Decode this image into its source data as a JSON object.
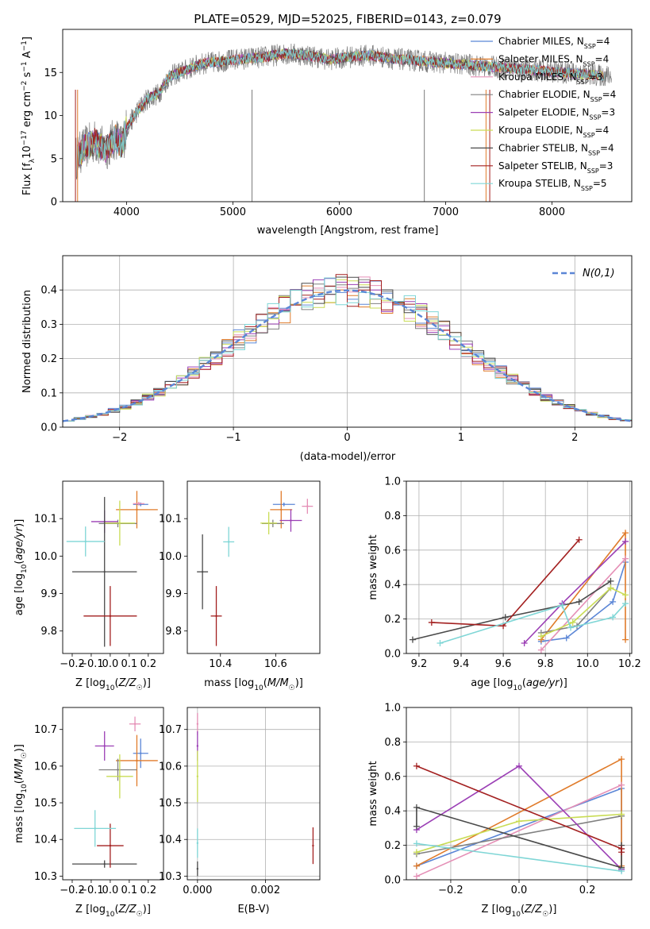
{
  "figure_title": "PLATE=0529, MJD=52025, FIBERID=0143, z=0.079",
  "colors": {
    "Chabrier MILES": "#5b86d6",
    "Salpeter MILES": "#e07b2a",
    "Kroupa MILES": "#e58fb6",
    "Chabrier ELODIE": "#808080",
    "Salpeter ELODIE": "#9b3fb5",
    "Kroupa ELODIE": "#c9dc55",
    "Chabrier STELIB": "#4a4a4a",
    "Salpeter STELIB": "#a32020",
    "Kroupa STELIB": "#7fd6d6",
    "normal": "#5b86d6"
  },
  "chart_data": [
    {
      "type": "line",
      "title": "PLATE=0529, MJD=52025, FIBERID=0143, z=0.079",
      "xlabel": "wavelength [Angstrom, rest frame]",
      "ylabel": "Flux [f_λ 10^-17 erg cm^-2 s^-1 A^-1]",
      "xlim": [
        3400,
        8750
      ],
      "ylim": [
        0,
        20
      ],
      "xticks": [
        4000,
        5000,
        6000,
        7000,
        8000
      ],
      "yticks": [
        0,
        5,
        10,
        15
      ],
      "grid": false,
      "legend_position": "right",
      "legend": [
        {
          "name": "Chabrier MILES",
          "nssp": "4"
        },
        {
          "name": "Salpeter MILES",
          "nssp": "4"
        },
        {
          "name": "Kroupa MILES",
          "nssp": "3"
        },
        {
          "name": "Chabrier ELODIE",
          "nssp": "4"
        },
        {
          "name": "Salpeter ELODIE",
          "nssp": "3"
        },
        {
          "name": "Kroupa ELODIE",
          "nssp": "4"
        },
        {
          "name": "Chabrier STELIB",
          "nssp": "4"
        },
        {
          "name": "Salpeter STELIB",
          "nssp": "3"
        },
        {
          "name": "Kroupa STELIB",
          "nssp": "5"
        }
      ],
      "spectrum_anchor_points": {
        "wavelength": [
          3520,
          3600,
          3700,
          3800,
          3900,
          3950,
          4000,
          4100,
          4200,
          4300,
          4400,
          4500,
          4700,
          4900,
          5100,
          5300,
          5500,
          5700,
          5900,
          6100,
          6300,
          6500,
          6700,
          6900,
          7100,
          7300,
          7500,
          7700,
          7900,
          8100,
          8300,
          8500
        ],
        "flux": [
          5.0,
          6.2,
          7.0,
          6.0,
          7.5,
          6.5,
          8.5,
          10.5,
          12.0,
          12.5,
          14.5,
          15.0,
          16.0,
          16.3,
          16.6,
          16.8,
          17.2,
          17.0,
          16.5,
          16.8,
          17.0,
          16.6,
          16.4,
          16.2,
          16.0,
          15.8,
          15.6,
          15.4,
          15.2,
          15.0,
          14.8,
          14.6
        ]
      }
    },
    {
      "type": "histogram",
      "xlabel": "(data-model)/error",
      "ylabel": "Normed distribution",
      "xlim": [
        -2.5,
        2.5
      ],
      "ylim": [
        0,
        0.5
      ],
      "xticks": [
        -2,
        -1,
        0,
        1,
        2
      ],
      "yticks": [
        0.0,
        0.1,
        0.2,
        0.3,
        0.4
      ],
      "grid": true,
      "legend": "N(0,1)",
      "legend_position": "top-right",
      "bin_width": 0.1,
      "bin_start": -2.5,
      "reference_curve": "normal pdf, mean 0, sigma 1"
    },
    {
      "type": "scatter",
      "panel": "age vs Z",
      "xlabel": "Z [log10(Z/Z☉)]",
      "ylabel": "age  [log10(age/yr)]",
      "xlim": [
        -0.25,
        0.28
      ],
      "ylim": [
        9.74,
        10.2
      ],
      "xticks": [
        -0.2,
        -0.1,
        0.0,
        0.1,
        0.2
      ],
      "yticks": [
        9.8,
        9.9,
        10.0,
        10.1
      ],
      "grid": false,
      "points": [
        {
          "model": "Chabrier MILES",
          "x": 0.16,
          "xerr": 0.04,
          "y": 10.138,
          "yerr": 0.005
        },
        {
          "model": "Salpeter MILES",
          "x": 0.14,
          "xerr": 0.11,
          "y": 10.124,
          "yerr": 0.05
        },
        {
          "model": "Kroupa MILES",
          "x": 0.15,
          "xerr": 0.03,
          "y": 10.14,
          "yerr": 0.005
        },
        {
          "model": "Chabrier ELODIE",
          "x": 0.04,
          "xerr": 0.1,
          "y": 10.087,
          "yerr": 0.01
        },
        {
          "model": "Salpeter ELODIE",
          "x": -0.03,
          "xerr": 0.07,
          "y": 10.092,
          "yerr": 0.03
        },
        {
          "model": "Kroupa ELODIE",
          "x": 0.05,
          "xerr": 0.08,
          "y": 10.088,
          "yerr": 0.06
        },
        {
          "model": "Chabrier STELIB",
          "x": -0.03,
          "xerr": 0.17,
          "y": 9.958,
          "yerr": 0.2
        },
        {
          "model": "Salpeter STELIB",
          "x": 0.0,
          "xerr": 0.14,
          "y": 9.84,
          "yerr": 0.08
        },
        {
          "model": "Kroupa STELIB",
          "x": -0.13,
          "xerr": 0.1,
          "y": 10.039,
          "yerr": 0.04
        }
      ]
    },
    {
      "type": "scatter",
      "panel": "age vs mass",
      "xlabel": "mass [log10(M/M☉)]",
      "xlim": [
        10.28,
        10.76
      ],
      "ylim": [
        9.74,
        10.2
      ],
      "xticks": [
        10.4,
        10.6
      ],
      "yticks": [
        9.8,
        9.9,
        10.0,
        10.1
      ],
      "grid": false,
      "points": [
        {
          "model": "Chabrier MILES",
          "x": 10.63,
          "xerr": 0.04,
          "y": 10.138,
          "yerr": 0.005
        },
        {
          "model": "Salpeter MILES",
          "x": 10.62,
          "xerr": 0.04,
          "y": 10.124,
          "yerr": 0.05
        },
        {
          "model": "Kroupa MILES",
          "x": 10.715,
          "xerr": 0.02,
          "y": 10.133,
          "yerr": 0.02
        },
        {
          "model": "Chabrier ELODIE",
          "x": 10.59,
          "xerr": 0.04,
          "y": 10.087,
          "yerr": 0.01
        },
        {
          "model": "Salpeter ELODIE",
          "x": 10.655,
          "xerr": 0.04,
          "y": 10.095,
          "yerr": 0.03
        },
        {
          "model": "Kroupa ELODIE",
          "x": 10.575,
          "xerr": 0.03,
          "y": 10.088,
          "yerr": 0.03
        },
        {
          "model": "Chabrier STELIB",
          "x": 10.335,
          "xerr": 0.02,
          "y": 9.958,
          "yerr": 0.1
        },
        {
          "model": "Salpeter STELIB",
          "x": 10.385,
          "xerr": 0.02,
          "y": 9.84,
          "yerr": 0.08
        },
        {
          "model": "Kroupa STELIB",
          "x": 10.43,
          "xerr": 0.02,
          "y": 10.038,
          "yerr": 0.04
        }
      ]
    },
    {
      "type": "line",
      "panel": "mass weight vs age",
      "xlabel": "age  [log10(age/yr)]",
      "ylabel": "mass weight",
      "xlim": [
        9.14,
        10.21
      ],
      "ylim": [
        0,
        1.0
      ],
      "xticks": [
        9.2,
        9.4,
        9.6,
        9.8,
        10.0,
        10.2
      ],
      "yticks": [
        0.0,
        0.2,
        0.4,
        0.6,
        0.8,
        1.0
      ],
      "grid": true,
      "series": [
        {
          "name": "Chabrier MILES",
          "x": [
            9.78,
            9.9,
            10.12,
            10.18
          ],
          "y": [
            0.07,
            0.09,
            0.3,
            0.53
          ]
        },
        {
          "name": "Salpeter MILES",
          "x": [
            9.78,
            10.18,
            10.18
          ],
          "y": [
            0.08,
            0.7,
            0.08
          ]
        },
        {
          "name": "Kroupa MILES",
          "x": [
            9.78,
            10.18
          ],
          "y": [
            0.02,
            0.55
          ]
        },
        {
          "name": "Chabrier ELODIE",
          "x": [
            9.78,
            9.95,
            10.11
          ],
          "y": [
            0.12,
            0.16,
            0.38
          ]
        },
        {
          "name": "Salpeter ELODIE",
          "x": [
            9.7,
            9.88,
            10.18
          ],
          "y": [
            0.06,
            0.29,
            0.65
          ]
        },
        {
          "name": "Kroupa ELODIE",
          "x": [
            9.78,
            9.93,
            10.11,
            10.18
          ],
          "y": [
            0.1,
            0.18,
            0.38,
            0.34
          ]
        },
        {
          "name": "Chabrier STELIB",
          "x": [
            9.17,
            9.61,
            9.96,
            10.11
          ],
          "y": [
            0.08,
            0.21,
            0.3,
            0.42
          ]
        },
        {
          "name": "Salpeter STELIB",
          "x": [
            9.26,
            9.6,
            9.96
          ],
          "y": [
            0.18,
            0.16,
            0.66
          ]
        },
        {
          "name": "Kroupa STELIB",
          "x": [
            9.3,
            9.88,
            9.92,
            10.12,
            10.18
          ],
          "y": [
            0.06,
            0.28,
            0.15,
            0.21,
            0.29
          ]
        }
      ]
    },
    {
      "type": "scatter",
      "panel": "mass vs Z",
      "xlabel": "Z [log10(Z/Z☉)]",
      "ylabel": "mass [log10(M/M☉)]",
      "xlim": [
        -0.25,
        0.28
      ],
      "ylim": [
        10.29,
        10.76
      ],
      "xticks": [
        -0.2,
        -0.1,
        0.0,
        0.1,
        0.2
      ],
      "yticks": [
        10.3,
        10.4,
        10.5,
        10.6,
        10.7
      ],
      "grid": false,
      "points": [
        {
          "model": "Chabrier MILES",
          "x": 0.16,
          "xerr": 0.04,
          "y": 10.635,
          "yerr": 0.04
        },
        {
          "model": "Salpeter MILES",
          "x": 0.14,
          "xerr": 0.11,
          "y": 10.615,
          "yerr": 0.07
        },
        {
          "model": "Kroupa MILES",
          "x": 0.13,
          "xerr": 0.03,
          "y": 10.715,
          "yerr": 0.02
        },
        {
          "model": "Chabrier ELODIE",
          "x": 0.04,
          "xerr": 0.1,
          "y": 10.59,
          "yerr": 0.03
        },
        {
          "model": "Salpeter ELODIE",
          "x": -0.03,
          "xerr": 0.05,
          "y": 10.655,
          "yerr": 0.04
        },
        {
          "model": "Kroupa ELODIE",
          "x": 0.05,
          "xerr": 0.07,
          "y": 10.572,
          "yerr": 0.06
        },
        {
          "model": "Chabrier STELIB",
          "x": -0.03,
          "xerr": 0.17,
          "y": 10.333,
          "yerr": 0.01
        },
        {
          "model": "Salpeter STELIB",
          "x": 0.0,
          "xerr": 0.07,
          "y": 10.383,
          "yerr": 0.06
        },
        {
          "model": "Kroupa STELIB",
          "x": -0.08,
          "xerr": 0.11,
          "y": 10.43,
          "yerr": 0.05
        }
      ]
    },
    {
      "type": "scatter",
      "panel": "mass vs E(B-V)",
      "xlabel": "E(B-V)",
      "xlim": [
        -0.0003,
        0.0036
      ],
      "ylim": [
        10.29,
        10.76
      ],
      "xticks": [
        0.0,
        0.002
      ],
      "xtick_labels": [
        "0.000",
        "0.002"
      ],
      "yticks": [
        10.3,
        10.4,
        10.5,
        10.6,
        10.7
      ],
      "grid": true,
      "points": [
        {
          "model": "Kroupa MILES",
          "x": 0.0,
          "y": 10.715,
          "yerr": 0.03
        },
        {
          "model": "Salpeter ELODIE",
          "x": 0.0,
          "y": 10.655,
          "yerr": 0.04
        },
        {
          "model": "Kroupa ELODIE",
          "x": 0.0,
          "y": 10.572,
          "yerr": 0.07
        },
        {
          "model": "Kroupa STELIB",
          "x": 0.0,
          "y": 10.39,
          "yerr": 0.04
        },
        {
          "model": "Chabrier STELIB",
          "x": 0.0,
          "y": 10.32,
          "yerr": 0.02
        },
        {
          "model": "Salpeter STELIB",
          "x": 0.0034,
          "y": 10.383,
          "yerr": 0.05
        }
      ]
    },
    {
      "type": "line",
      "panel": "mass weight vs Z",
      "xlabel": "Z [log10(Z/Z☉)]",
      "ylabel": "mass weight",
      "xlim": [
        -0.33,
        0.33
      ],
      "ylim": [
        0,
        1.0
      ],
      "xticks": [
        -0.2,
        0.0,
        0.2
      ],
      "yticks": [
        0.0,
        0.2,
        0.4,
        0.6,
        0.8,
        1.0
      ],
      "grid": true,
      "series": [
        {
          "name": "Chabrier MILES",
          "x": [
            -0.3,
            0.3,
            0.3
          ],
          "y": [
            0.08,
            0.53,
            0.06
          ]
        },
        {
          "name": "Salpeter MILES",
          "x": [
            -0.3,
            0.3,
            0.3
          ],
          "y": [
            0.08,
            0.7,
            0.08
          ]
        },
        {
          "name": "Kroupa MILES",
          "x": [
            -0.3,
            0.3
          ],
          "y": [
            0.02,
            0.55
          ]
        },
        {
          "name": "Chabrier ELODIE",
          "x": [
            -0.3,
            0.3
          ],
          "y": [
            0.15,
            0.37
          ]
        },
        {
          "name": "Salpeter ELODIE",
          "x": [
            -0.3,
            0.0,
            0.3
          ],
          "y": [
            0.29,
            0.66,
            0.06
          ]
        },
        {
          "name": "Kroupa ELODIE",
          "x": [
            -0.3,
            0.0,
            0.3
          ],
          "y": [
            0.16,
            0.34,
            0.38
          ]
        },
        {
          "name": "Chabrier STELIB",
          "x": [
            -0.3,
            -0.3,
            0.3,
            0.3
          ],
          "y": [
            0.31,
            0.42,
            0.07,
            0.2
          ]
        },
        {
          "name": "Salpeter STELIB",
          "x": [
            -0.3,
            0.3,
            0.3
          ],
          "y": [
            0.66,
            0.18,
            0.16
          ]
        },
        {
          "name": "Kroupa STELIB",
          "x": [
            -0.3,
            0.3
          ],
          "y": [
            0.21,
            0.05
          ]
        }
      ]
    }
  ]
}
